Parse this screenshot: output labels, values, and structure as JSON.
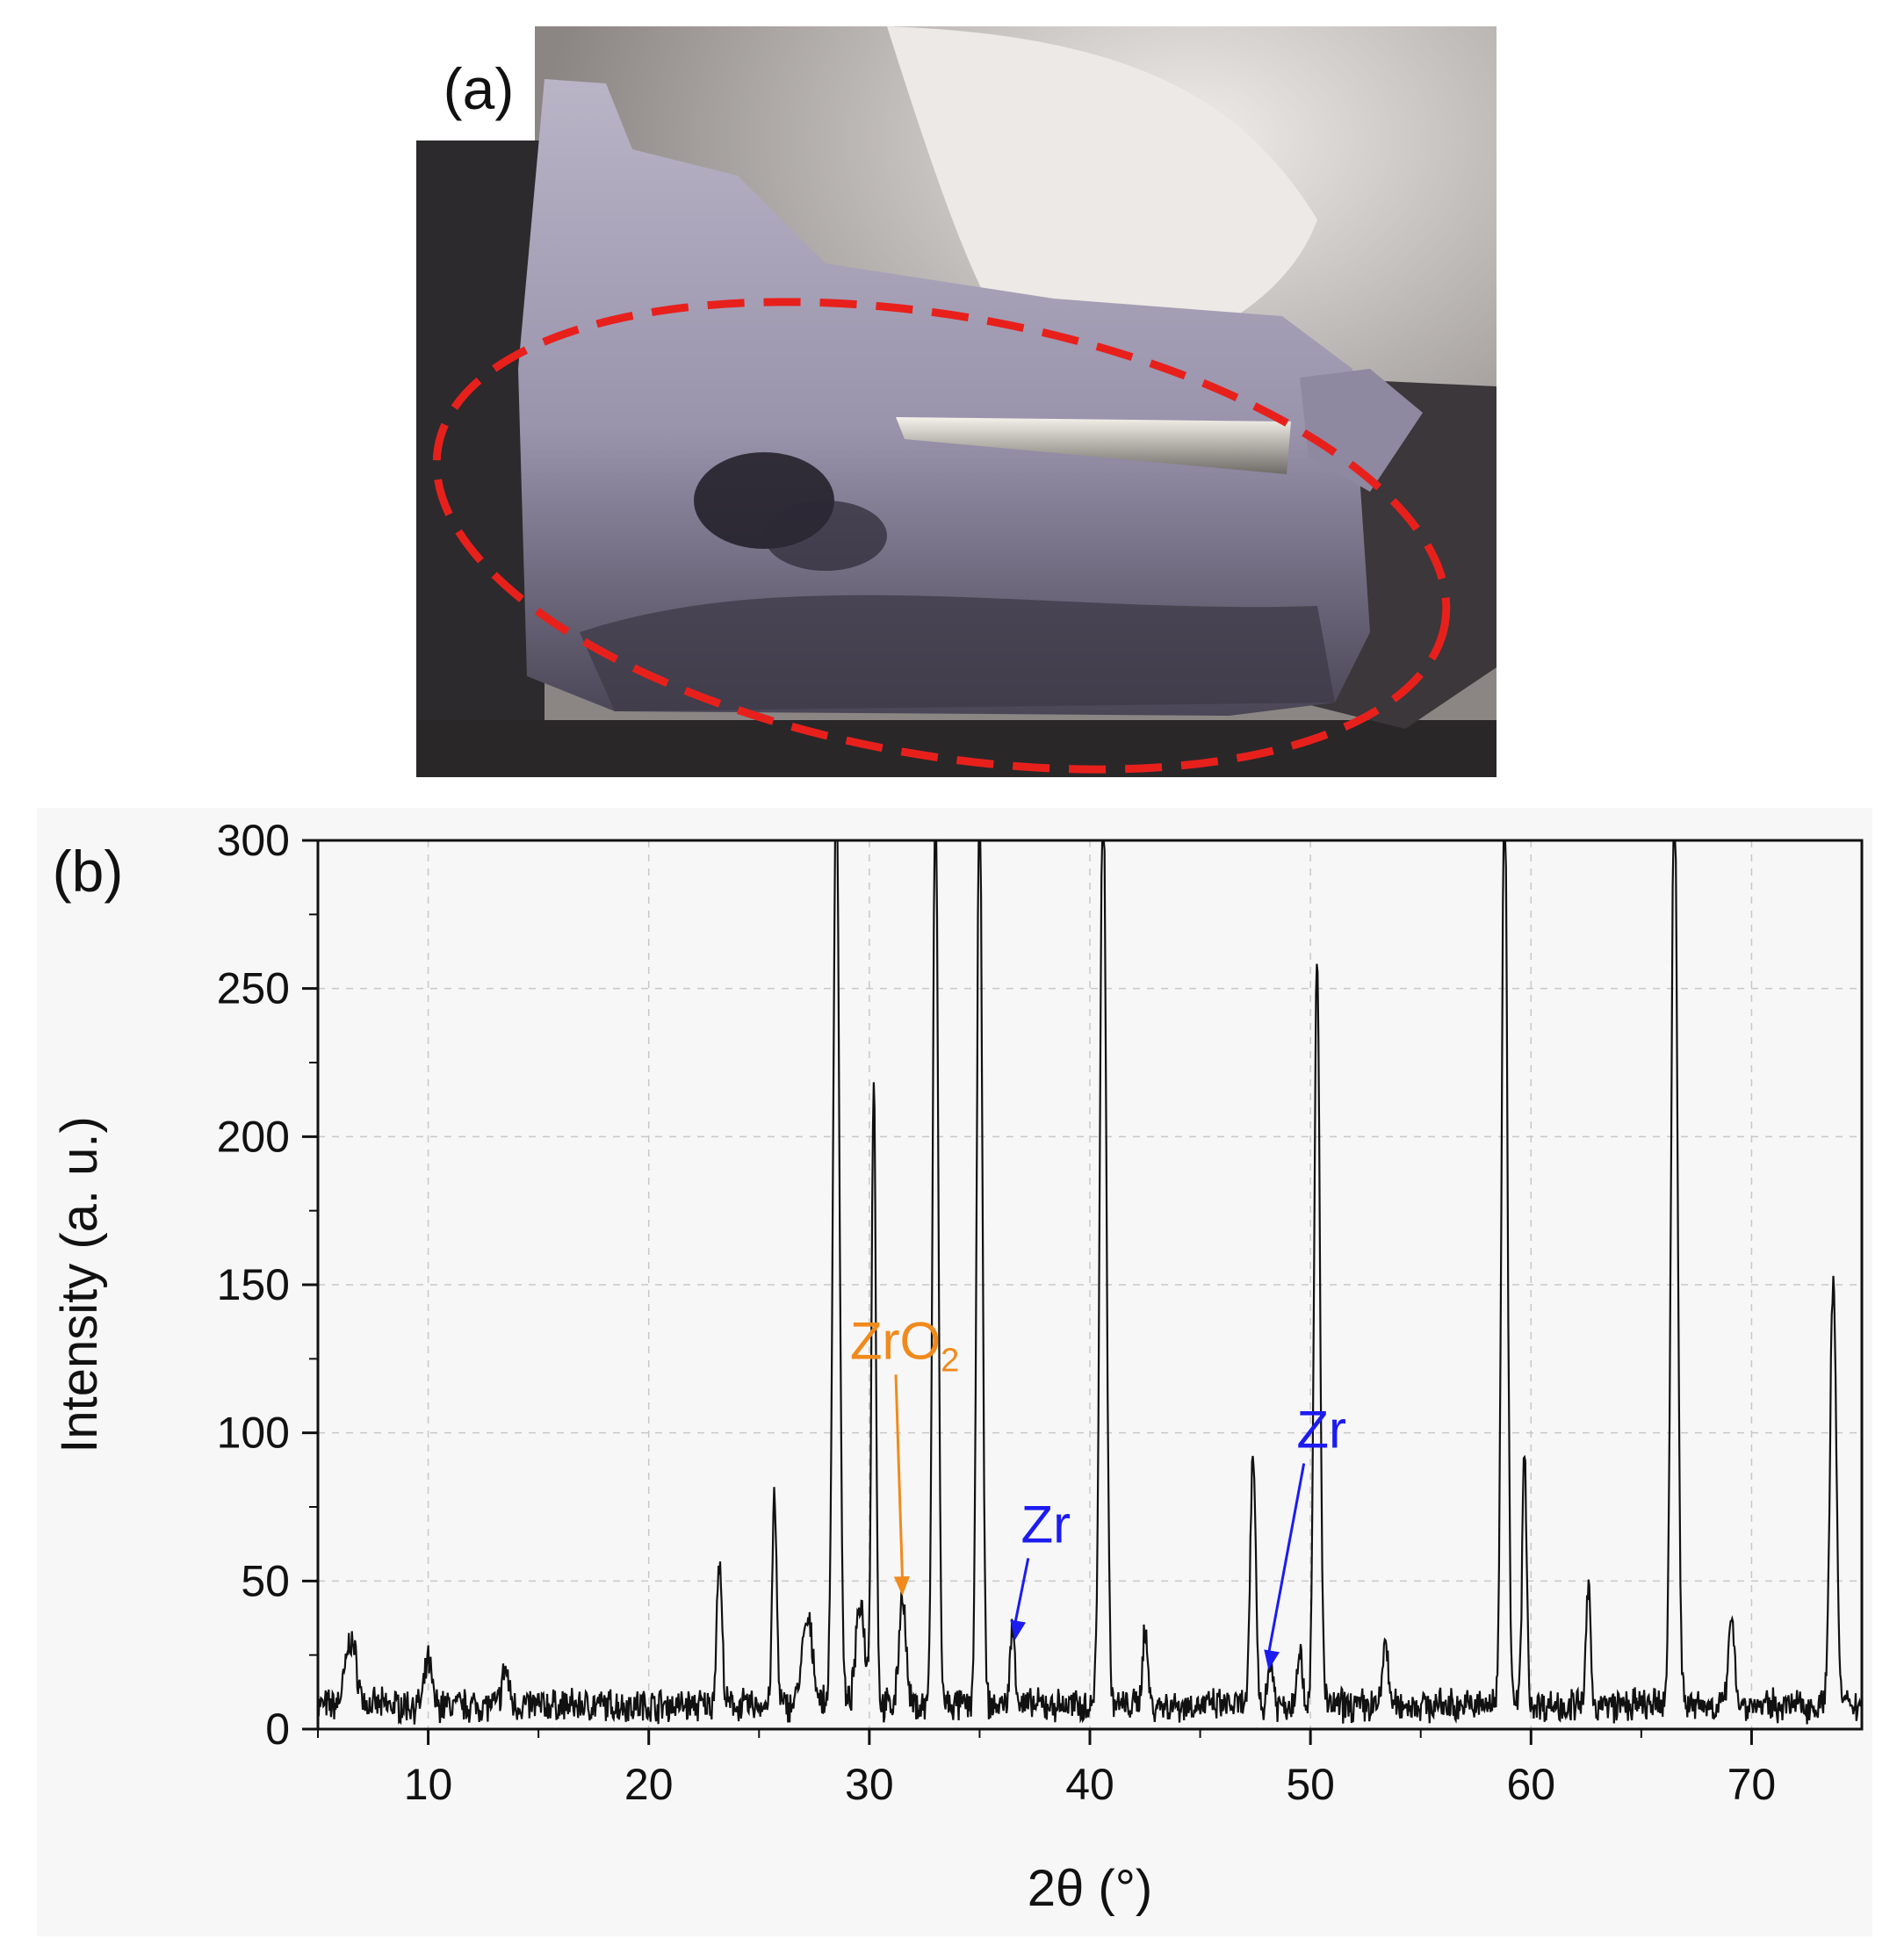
{
  "panel_a": {
    "label": "(a)",
    "photo_icon": "sample-photo",
    "highlight_color": "#e8201c"
  },
  "panel_b": {
    "label": "(b)"
  },
  "chart_data": {
    "type": "line",
    "xlabel": "2θ (°)",
    "ylabel": "Intensity (a. u.)",
    "xlim": [
      5,
      75
    ],
    "ylim": [
      0,
      300
    ],
    "xticks": [
      10,
      20,
      30,
      40,
      50,
      60,
      70
    ],
    "yticks": [
      0,
      50,
      100,
      150,
      200,
      250,
      300
    ],
    "grid": true,
    "line_color": "#111111",
    "baseline": 8,
    "peaks": [
      {
        "x": 6.5,
        "y": 22,
        "w": 0.25
      },
      {
        "x": 10.0,
        "y": 15,
        "w": 0.15
      },
      {
        "x": 13.5,
        "y": 12,
        "w": 0.15
      },
      {
        "x": 23.2,
        "y": 48,
        "w": 0.12
      },
      {
        "x": 25.7,
        "y": 70,
        "w": 0.1
      },
      {
        "x": 27.2,
        "y": 28,
        "w": 0.25
      },
      {
        "x": 28.5,
        "y": 320,
        "w": 0.14
      },
      {
        "x": 29.6,
        "y": 35,
        "w": 0.2
      },
      {
        "x": 30.2,
        "y": 212,
        "w": 0.1
      },
      {
        "x": 31.5,
        "y": 38,
        "w": 0.15
      },
      {
        "x": 33.0,
        "y": 320,
        "w": 0.12
      },
      {
        "x": 35.0,
        "y": 320,
        "w": 0.12
      },
      {
        "x": 36.5,
        "y": 25,
        "w": 0.12
      },
      {
        "x": 40.6,
        "y": 320,
        "w": 0.14
      },
      {
        "x": 42.5,
        "y": 25,
        "w": 0.12
      },
      {
        "x": 47.4,
        "y": 85,
        "w": 0.12
      },
      {
        "x": 48.2,
        "y": 15,
        "w": 0.12
      },
      {
        "x": 49.5,
        "y": 20,
        "w": 0.12
      },
      {
        "x": 50.3,
        "y": 252,
        "w": 0.13
      },
      {
        "x": 53.4,
        "y": 22,
        "w": 0.12
      },
      {
        "x": 58.8,
        "y": 320,
        "w": 0.13
      },
      {
        "x": 59.7,
        "y": 86,
        "w": 0.1
      },
      {
        "x": 62.6,
        "y": 40,
        "w": 0.1
      },
      {
        "x": 66.5,
        "y": 320,
        "w": 0.14
      },
      {
        "x": 69.1,
        "y": 32,
        "w": 0.13
      },
      {
        "x": 73.7,
        "y": 145,
        "w": 0.14
      }
    ],
    "annotations": [
      {
        "text": "ZrO",
        "sub": "2",
        "color": "#f08a1c",
        "label_x": 31.6,
        "label_y": 125,
        "arrow_to_x": 31.5,
        "arrow_to_y": 45
      },
      {
        "text": "Zr",
        "sub": "",
        "color": "#1c1cf0",
        "label_x": 38.0,
        "label_y": 63,
        "arrow_to_x": 36.6,
        "arrow_to_y": 30
      },
      {
        "text": "Zr",
        "sub": "",
        "color": "#1c1cf0",
        "label_x": 50.5,
        "label_y": 95,
        "arrow_to_x": 48.1,
        "arrow_to_y": 20
      }
    ]
  }
}
